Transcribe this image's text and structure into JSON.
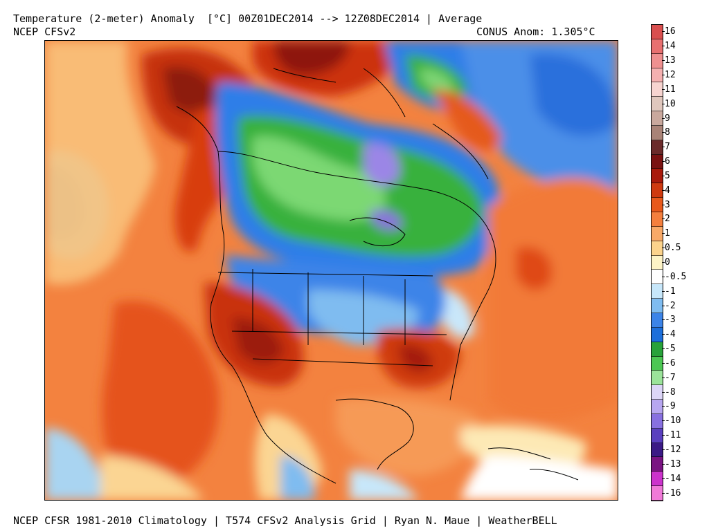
{
  "header": {
    "title": "Temperature (2-meter) Anomaly  [°C] 00Z01DEC2014 --> 12Z08DEC2014 | Average",
    "model": "NCEP CFSv2",
    "conus_anom": "CONUS Anom: 1.305°C"
  },
  "footer": "NCEP CFSR 1981-2010 Climatology | T574 CFSv2 Analysis Grid | Ryan N. Maue | WeatherBELL",
  "colorbar": {
    "labels": [
      "16",
      "14",
      "13",
      "12",
      "11",
      "10",
      "9",
      "8",
      "7",
      "6",
      "5",
      "4",
      "3",
      "2",
      "1",
      "0.5",
      "0",
      "-0.5",
      "-1",
      "-2",
      "-3",
      "-4",
      "-5",
      "-6",
      "-7",
      "-8",
      "-9",
      "-10",
      "-11",
      "-12",
      "-13",
      "-14",
      "-16"
    ],
    "colors": [
      "#d94f4f",
      "#e87070",
      "#ef9090",
      "#f5b0b0",
      "#f7d4d0",
      "#e0c7bd",
      "#c9a89d",
      "#a98377",
      "#6b2b2b",
      "#7a1212",
      "#a91a0c",
      "#cf3a10",
      "#e8591c",
      "#f47f3e",
      "#f8a968",
      "#fcd38c",
      "#fdf3c6",
      "#ffffff",
      "#c7e7fa",
      "#7fbcf0",
      "#3c84e8",
      "#1d6fdb",
      "#28a23a",
      "#4cc753",
      "#9be39a",
      "#dcd5f7",
      "#b7a6f0",
      "#8870e0",
      "#5a3fbf",
      "#3b1a86",
      "#7a1482",
      "#cc33cc",
      "#f07ad8"
    ]
  },
  "map": {
    "region": "North America",
    "legend_units": "°C"
  }
}
